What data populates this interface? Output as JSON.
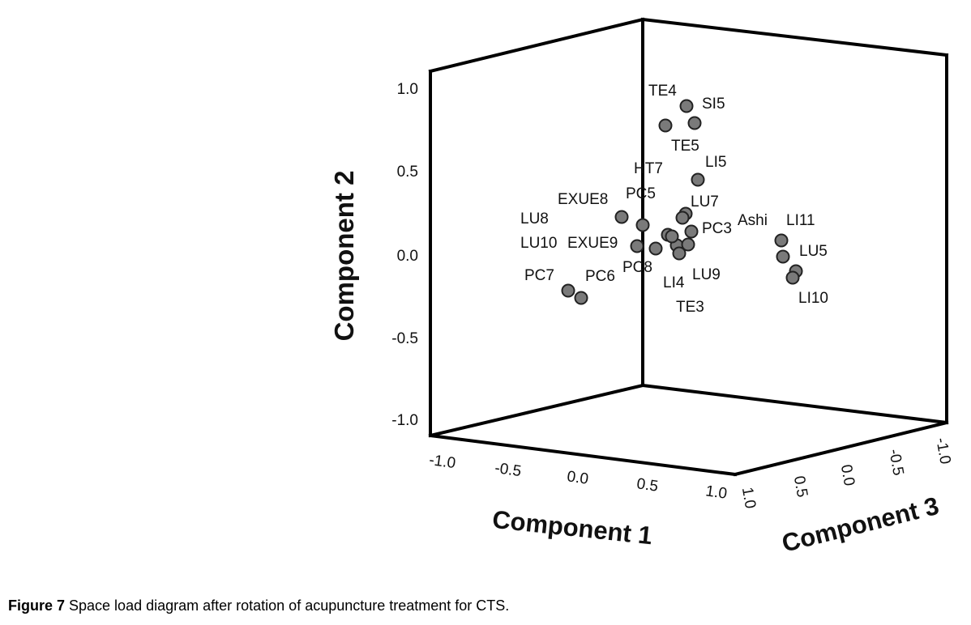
{
  "caption": {
    "label": "Figure 7",
    "text": " Space load diagram after rotation of acupuncture treatment for CTS."
  },
  "chart_data": {
    "type": "scatter",
    "projection": "3d",
    "title": "",
    "axes": {
      "x": {
        "label": "Component 1",
        "range": [
          -1.0,
          1.0
        ],
        "ticks": [
          "-1.0",
          "-0.5",
          "0.0",
          "0.5",
          "1.0"
        ]
      },
      "y": {
        "label": "Component 2",
        "range": [
          -1.0,
          1.0
        ],
        "ticks": [
          "1.0",
          "0.5",
          "0.0",
          "-0.5",
          "-1.0"
        ]
      },
      "z": {
        "label": "Component 3",
        "range": [
          -1.0,
          1.0
        ],
        "ticks": [
          "1.0",
          "0.5",
          "0.0",
          "-0.5",
          "-1.0"
        ]
      }
    },
    "grid": false,
    "points": [
      {
        "label": "TE4"
      },
      {
        "label": "SI5"
      },
      {
        "label": "TE5"
      },
      {
        "label": "LI5"
      },
      {
        "label": "HT7"
      },
      {
        "label": "EXUE8"
      },
      {
        "label": "PC5"
      },
      {
        "label": "LU8"
      },
      {
        "label": "LU7"
      },
      {
        "label": "PC3"
      },
      {
        "label": "Ashi"
      },
      {
        "label": "LI11"
      },
      {
        "label": "LU10"
      },
      {
        "label": "EXUE9"
      },
      {
        "label": "LU5"
      },
      {
        "label": "PC8"
      },
      {
        "label": "PC6"
      },
      {
        "label": "PC7"
      },
      {
        "label": "LI4"
      },
      {
        "label": "LU9"
      },
      {
        "label": "TE3"
      },
      {
        "label": "LI10"
      }
    ],
    "marker_color": "#7a7a7a"
  }
}
